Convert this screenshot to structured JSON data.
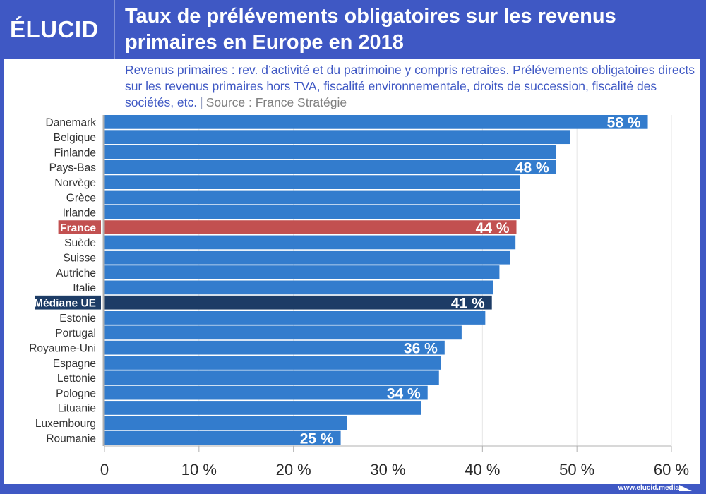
{
  "header": {
    "logo": "ÉLUCID",
    "title": "Taux de prélévements obligatoires sur les revenus primaires en Europe en 2018"
  },
  "subtitle": {
    "text": "Revenus primaires : rev. d’activité et du patrimoine y compris retraites. Prélévements obligatoires directs sur les revenus primaires hors TVA, fiscalité environnementale, droits de succession, fiscalité des sociétés, etc.",
    "separator": "|",
    "source": "Source : France Stratégie"
  },
  "footer": {
    "url": "www.elucid.media"
  },
  "colors": {
    "background": "#3f58c4",
    "bar_default": "#337ccd",
    "bar_france": "#c25050",
    "bar_median": "#1d3c66",
    "axis": "#b0b0b0",
    "gridline": "#e6e6e6",
    "label_text": "#333333"
  },
  "chart_data": {
    "type": "bar",
    "orientation": "horizontal",
    "title": "Taux de prélévements obligatoires sur les revenus primaires en Europe en 2018",
    "xlabel": "",
    "ylabel": "",
    "xlim": [
      0,
      60
    ],
    "xticks": [
      0,
      10,
      20,
      30,
      40,
      50,
      60
    ],
    "xtick_labels": [
      "0",
      "10 %",
      "20 %",
      "30 %",
      "40 %",
      "50 %",
      "60 %"
    ],
    "grid": "vertical",
    "categories": [
      "Danemark",
      "Belgique",
      "Finlande",
      "Pays-Bas",
      "Norvège",
      "Grèce",
      "Irlande",
      "France",
      "Suède",
      "Suisse",
      "Autriche",
      "Italie",
      "Médiane UE",
      "Estonie",
      "Portugal",
      "Royaume-Uni",
      "Espagne",
      "Lettonie",
      "Pologne",
      "Lituanie",
      "Luxembourg",
      "Roumanie"
    ],
    "values": [
      57.5,
      49.3,
      47.8,
      47.8,
      44.0,
      44.0,
      44.0,
      43.6,
      43.5,
      42.9,
      41.8,
      41.1,
      41.0,
      40.3,
      37.8,
      36.0,
      35.6,
      35.4,
      34.2,
      33.5,
      25.7,
      25.0
    ],
    "highlights": {
      "France": "france",
      "Médiane UE": "median"
    },
    "data_labels": {
      "Danemark": "58 %",
      "Pays-Bas": "48 %",
      "France": "44 %",
      "Médiane UE": "41 %",
      "Royaume-Uni": "36 %",
      "Pologne": "34 %",
      "Roumanie": "25 %"
    }
  }
}
